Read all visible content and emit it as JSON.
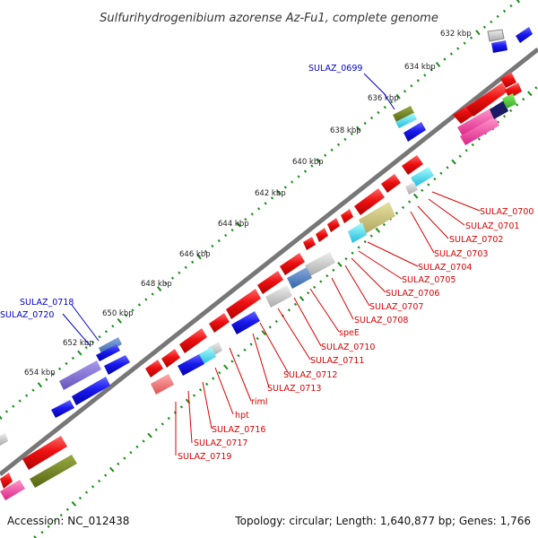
{
  "title": "Sulfurihydrogenibium azorense Az-Fu1, complete genome",
  "footer": {
    "accession": "Accession: NC_012438",
    "topology": "Topology: circular; Length: 1,640,877 bp; Genes: 1,766"
  },
  "ticks": [
    "632 kbp",
    "634 kbp",
    "636 kbp",
    "638 kbp",
    "640 kbp",
    "642 kbp",
    "644 kbp",
    "646 kbp",
    "648 kbp",
    "650 kbp",
    "652 kbp",
    "654 kbp"
  ],
  "labels_blue": [
    "SULAZ_0699",
    "SULAZ_0718",
    "SULAZ_0720"
  ],
  "labels_red": [
    "SULAZ_0700",
    "SULAZ_0701",
    "SULAZ_0702",
    "SULAZ_0703",
    "SULAZ_0704",
    "SULAZ_0705",
    "SULAZ_0706",
    "SULAZ_0707",
    "SULAZ_0708",
    "speE",
    "SULAZ_0710",
    "SULAZ_0711",
    "SULAZ_0712",
    "SULAZ_0713",
    "rimI",
    "hpt",
    "SULAZ_0716",
    "SULAZ_0717",
    "SULAZ_0719"
  ],
  "colors": {
    "forward_gene": "#ee1111",
    "reverse_gene": "#1a1aee",
    "label_red": "#dd0000",
    "label_blue": "#0000cc",
    "backbone": "#777777",
    "tick_line": "#1a8a1a"
  }
}
